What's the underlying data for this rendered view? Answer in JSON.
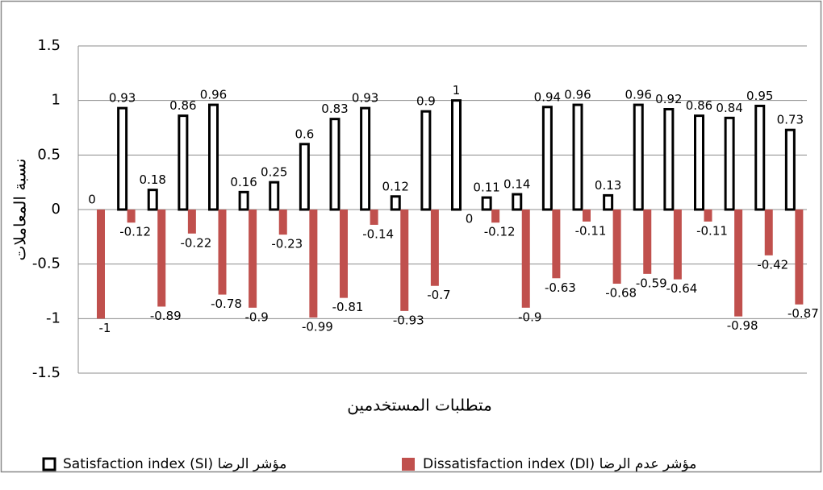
{
  "chart_data": {
    "type": "bar",
    "x_label": "متطلبات المستخدمين",
    "y_label": "نسبة المعاملات",
    "categories": [
      null,
      null,
      null,
      null,
      null,
      null,
      null,
      null,
      null,
      null,
      null,
      null,
      null,
      null,
      null,
      null,
      null,
      null,
      null,
      null,
      null,
      null,
      null,
      null
    ],
    "series": [
      {
        "name": "Satisfaction index (SI) مؤشر الرضا",
        "color": "#000000",
        "values": [
          0,
          0.93,
          0.18,
          0.86,
          0.96,
          0.16,
          0.25,
          0.6,
          0.83,
          0.93,
          0.12,
          0.9,
          1,
          0.11,
          0.14,
          0.94,
          0.96,
          0.13,
          0.96,
          0.92,
          0.86,
          0.84,
          0.95,
          0.73
        ]
      },
      {
        "name": "Dissatisfaction index (DI) مؤشر عدم الرضا",
        "color": "#c0504d",
        "values": [
          -1,
          -0.12,
          -0.89,
          -0.22,
          -0.78,
          -0.9,
          -0.23,
          -0.99,
          -0.81,
          -0.14,
          -0.93,
          -0.7,
          0,
          -0.12,
          -0.9,
          -0.63,
          -0.11,
          -0.68,
          -0.59,
          -0.64,
          -0.11,
          -0.98,
          -0.42,
          -0.87
        ]
      }
    ],
    "ylim": [
      -1.5,
      1.5
    ],
    "yticks": [
      -1.5,
      -1,
      -0.5,
      0,
      0.5,
      1,
      1.5
    ],
    "grid": true
  }
}
